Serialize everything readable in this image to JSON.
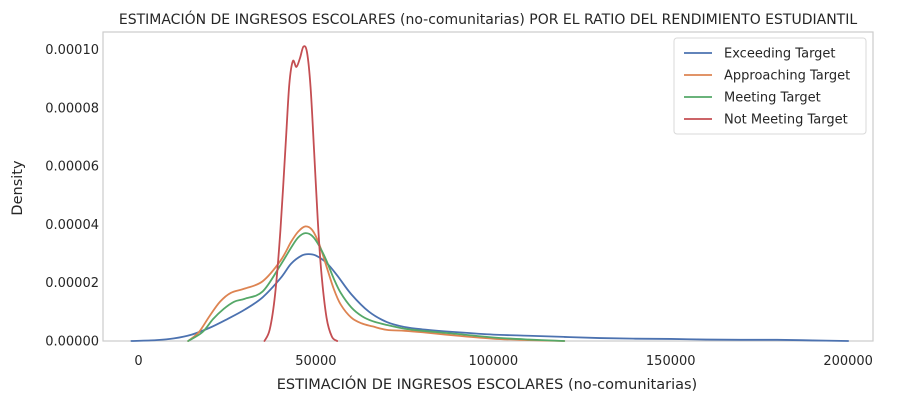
{
  "chart_data": {
    "type": "line",
    "title": "ESTIMACIÓN DE INGRESOS ESCOLARES (no-comunitarias) POR EL RATIO DEL RENDIMIENTO ESTUDIANTIL",
    "xlabel": "ESTIMACIÓN DE INGRESOS ESCOLARES (no-comunitarias)",
    "ylabel": "Density",
    "xlim": [
      -10000,
      207000
    ],
    "ylim": [
      0,
      0.000106
    ],
    "xticks": [
      0,
      50000,
      100000,
      150000,
      200000
    ],
    "xtick_labels": [
      "0",
      "50000",
      "100000",
      "150000",
      "200000"
    ],
    "yticks": [
      0,
      2e-05,
      4e-05,
      6e-05,
      8e-05,
      0.0001
    ],
    "ytick_labels": [
      "0.00000",
      "0.00002",
      "0.00004",
      "0.00006",
      "0.00008",
      "0.00010"
    ],
    "grid": false,
    "legend_position": "top-right",
    "series": [
      {
        "name": "Exceeding Target",
        "color": "#4c72b0",
        "x": [
          -2000,
          5000,
          10000,
          15000,
          20000,
          25000,
          30000,
          35000,
          40000,
          43000,
          46000,
          48000,
          50000,
          53000,
          56000,
          60000,
          65000,
          70000,
          75000,
          80000,
          90000,
          100000,
          110000,
          120000,
          130000,
          140000,
          150000,
          160000,
          170000,
          180000,
          190000,
          200000
        ],
        "y": [
          0.0,
          3e-07,
          9e-07,
          2.2e-06,
          4.5e-06,
          7.5e-06,
          1.08e-05,
          1.5e-05,
          2.15e-05,
          2.65e-05,
          2.93e-05,
          2.98e-05,
          2.93e-05,
          2.68e-05,
          2.25e-05,
          1.6e-05,
          1e-05,
          6.5e-06,
          4.8e-06,
          4e-06,
          3e-06,
          2.2e-06,
          1.8e-06,
          1.4e-06,
          1e-06,
          8e-07,
          7e-07,
          5e-07,
          4e-07,
          4e-07,
          2e-07,
          0.0
        ]
      },
      {
        "name": "Approaching Target",
        "color": "#dd8452",
        "x": [
          14000,
          17000,
          20000,
          23000,
          26000,
          30000,
          35000,
          40000,
          43000,
          45000,
          47000,
          49000,
          51000,
          53000,
          55000,
          57000,
          60000,
          63000,
          66000,
          70000,
          75000,
          80000,
          90000,
          100000,
          110000,
          120000
        ],
        "y": [
          0.0,
          3e-06,
          8.5e-06,
          1.35e-05,
          1.65e-05,
          1.8e-05,
          2.05e-05,
          2.75e-05,
          3.4e-05,
          3.75e-05,
          3.93e-05,
          3.8e-05,
          3.3e-05,
          2.55e-05,
          1.8e-05,
          1.25e-05,
          8e-06,
          6e-06,
          5e-06,
          3.8e-06,
          3.5e-06,
          3e-06,
          1.8e-06,
          8e-07,
          3e-07,
          0.0
        ]
      },
      {
        "name": "Meeting Target",
        "color": "#55a868",
        "x": [
          14000,
          18000,
          21000,
          24000,
          27000,
          30000,
          35000,
          40000,
          43000,
          45000,
          47000,
          49000,
          51000,
          53000,
          55000,
          57000,
          60000,
          63000,
          66000,
          70000,
          75000,
          80000,
          90000,
          100000,
          110000,
          120000
        ],
        "y": [
          0.0,
          3e-06,
          7.5e-06,
          1.1e-05,
          1.35e-05,
          1.45e-05,
          1.7e-05,
          2.6e-05,
          3.2e-05,
          3.55e-05,
          3.7e-05,
          3.6e-05,
          3.25e-05,
          2.75e-05,
          2.15e-05,
          1.65e-05,
          1.15e-05,
          8.5e-06,
          6.8e-06,
          5.5e-06,
          4.2e-06,
          3.5e-06,
          2.4e-06,
          1.2e-06,
          5e-07,
          0.0
        ]
      },
      {
        "name": "Not Meeting Target",
        "color": "#c44e52",
        "x": [
          35500,
          37000,
          38500,
          40000,
          41500,
          42500,
          43500,
          44500,
          45500,
          46500,
          47500,
          48500,
          49500,
          50500,
          51500,
          53000,
          54500,
          56000
        ],
        "y": [
          0.0,
          4e-06,
          1.6e-05,
          3.8e-05,
          6.8e-05,
          8.8e-05,
          9.6e-05,
          9.4e-05,
          9.7e-05,
          0.000101,
          9.9e-05,
          8.7e-05,
          6.5e-05,
          4.2e-05,
          2.4e-05,
          8e-06,
          1.5e-06,
          0.0
        ]
      }
    ]
  }
}
